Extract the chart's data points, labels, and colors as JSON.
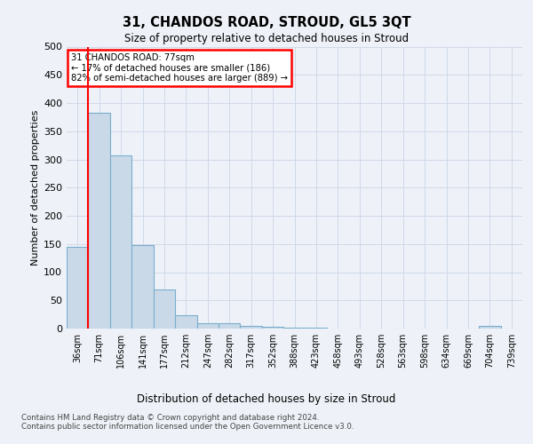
{
  "title_line1": "31, CHANDOS ROAD, STROUD, GL5 3QT",
  "title_line2": "Size of property relative to detached houses in Stroud",
  "xlabel": "Distribution of detached houses by size in Stroud",
  "ylabel": "Number of detached properties",
  "bin_labels": [
    "36sqm",
    "71sqm",
    "106sqm",
    "141sqm",
    "177sqm",
    "212sqm",
    "247sqm",
    "282sqm",
    "317sqm",
    "352sqm",
    "388sqm",
    "423sqm",
    "458sqm",
    "493sqm",
    "528sqm",
    "563sqm",
    "598sqm",
    "634sqm",
    "669sqm",
    "704sqm",
    "739sqm"
  ],
  "bar_values": [
    145,
    383,
    307,
    148,
    70,
    23,
    10,
    10,
    5,
    3,
    1,
    1,
    0,
    0,
    0,
    0,
    0,
    0,
    0,
    4,
    0
  ],
  "bar_color": "#c9d9e8",
  "bar_edge_color": "#7aadcc",
  "grid_color": "#d0d8e8",
  "red_line_color": "red",
  "annotation_text": "31 CHANDOS ROAD: 77sqm\n← 17% of detached houses are smaller (186)\n82% of semi-detached houses are larger (889) →",
  "annotation_box_color": "white",
  "annotation_box_edge_color": "red",
  "ylim": [
    0,
    500
  ],
  "yticks": [
    0,
    50,
    100,
    150,
    200,
    250,
    300,
    350,
    400,
    450,
    500
  ],
  "footer_text": "Contains HM Land Registry data © Crown copyright and database right 2024.\nContains public sector information licensed under the Open Government Licence v3.0.",
  "background_color": "#eef2f8"
}
